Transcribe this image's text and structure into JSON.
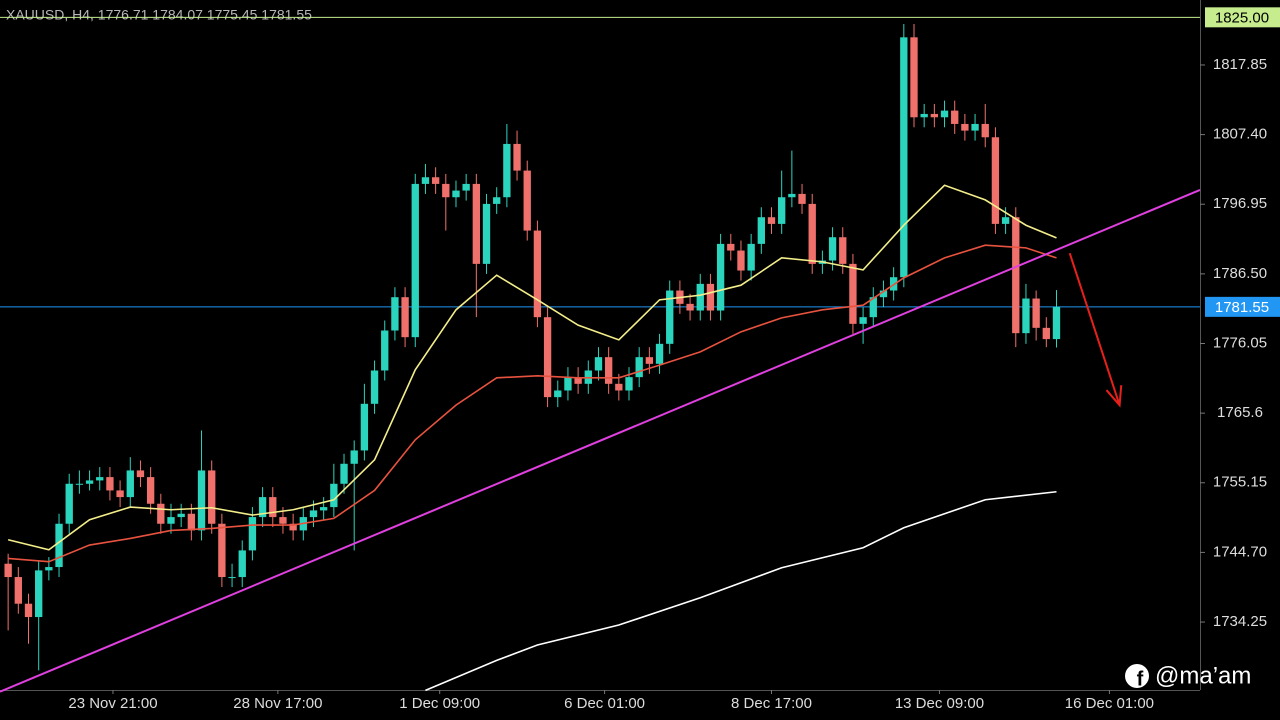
{
  "chart_data": {
    "type": "candlestick",
    "title": "XAUUSD, H4, 1776.71 1784.07 1775.45 1781.55",
    "up_color": "#2bd4bd",
    "down_color": "#f0716b",
    "open": [
      1743,
      1741,
      1737,
      1735,
      1742,
      1742.5,
      1749,
      1755,
      1755,
      1755.5,
      1756,
      1754,
      1753,
      1757,
      1756,
      1752,
      1749,
      1750,
      1750.5,
      1748,
      1757,
      1749,
      1741,
      1741,
      1745,
      1750,
      1753,
      1750,
      1749,
      1748,
      1750,
      1751,
      1751.5,
      1755,
      1758,
      1760,
      1767,
      1772,
      1778,
      1783,
      1777,
      1800,
      1801,
      1800,
      1798,
      1799,
      1800,
      1788,
      1797,
      1798,
      1806,
      1802,
      1793,
      1780,
      1768,
      1769,
      1771,
      1770,
      1772,
      1774,
      1770,
      1769,
      1771,
      1774,
      1773,
      1776,
      1784,
      1782,
      1781,
      1785,
      1781,
      1791,
      1790,
      1787,
      1791,
      1795,
      1794,
      1798,
      1798.5,
      1797,
      1788,
      1788.5,
      1792,
      1788,
      1779,
      1780,
      1783,
      1784,
      1786,
      1822,
      1810,
      1810.5,
      1810,
      1811,
      1809,
      1808,
      1809,
      1807,
      1794,
      1795,
      1777.6,
      1782.8,
      1778.4,
      1776.71
    ],
    "high": [
      1744.5,
      1742.5,
      1738.5,
      1743.5,
      1744,
      1750.5,
      1756.5,
      1757,
      1757,
      1757.5,
      1757.5,
      1755.5,
      1759,
      1758.5,
      1757.5,
      1753.5,
      1752,
      1752,
      1752,
      1763,
      1758.5,
      1750.5,
      1743,
      1746.5,
      1751.5,
      1754.5,
      1754.5,
      1751.5,
      1750.5,
      1751.5,
      1752.5,
      1753,
      1758,
      1759.5,
      1761.5,
      1770,
      1773.5,
      1779.5,
      1784.5,
      1784.5,
      1801.5,
      1803,
      1802.5,
      1801.5,
      1800.5,
      1801.5,
      1801.5,
      1798.5,
      1799.5,
      1809,
      1808,
      1803.5,
      1794.5,
      1781.5,
      1770.5,
      1772.5,
      1772.5,
      1773.5,
      1775.5,
      1775.5,
      1771.5,
      1772.5,
      1775.5,
      1775.5,
      1777.5,
      1785.5,
      1785.5,
      1783.5,
      1786.5,
      1786.5,
      1792.5,
      1792.5,
      1791.5,
      1792.5,
      1796.5,
      1796.5,
      1802,
      1805,
      1800,
      1798.5,
      1790,
      1793.5,
      1793.5,
      1789.5,
      1781.5,
      1784.5,
      1785.5,
      1787.5,
      1824,
      1824,
      1812,
      1812,
      1812.5,
      1812.5,
      1810.5,
      1810.5,
      1812,
      1808.5,
      1796.5,
      1796.5,
      1785,
      1784,
      1780,
      1784.07
    ],
    "low": [
      1733,
      1735.5,
      1731,
      1727,
      1740.5,
      1741,
      1747.5,
      1753.5,
      1754,
      1754,
      1752.5,
      1751.5,
      1751.5,
      1754.5,
      1750.5,
      1747.5,
      1747.5,
      1748.5,
      1746.5,
      1746.5,
      1747.5,
      1739.5,
      1739.5,
      1739.5,
      1743.5,
      1748.5,
      1748.5,
      1747.5,
      1746.5,
      1746.5,
      1748.5,
      1749.5,
      1750,
      1753.5,
      1745,
      1758.5,
      1765.5,
      1770.5,
      1776.5,
      1775.5,
      1775.5,
      1798.5,
      1798.5,
      1793,
      1796.5,
      1797.5,
      1780,
      1786.5,
      1795.5,
      1796.5,
      1800.5,
      1791.5,
      1778.5,
      1766.5,
      1766.5,
      1767.5,
      1768.5,
      1768.5,
      1770.5,
      1768.5,
      1767.5,
      1767.5,
      1769.5,
      1771.5,
      1771.5,
      1774.5,
      1780.5,
      1779.5,
      1779.5,
      1779.5,
      1779.5,
      1788.5,
      1785.5,
      1785.5,
      1789.5,
      1792.5,
      1792.5,
      1796.5,
      1795.5,
      1786.5,
      1786.5,
      1787,
      1786.5,
      1777.5,
      1776,
      1778.5,
      1781.5,
      1782.5,
      1784.5,
      1808.5,
      1808.5,
      1808.5,
      1808.5,
      1807.5,
      1806.5,
      1806.5,
      1805.5,
      1792.5,
      1792.5,
      1775.5,
      1776,
      1776.5,
      1775.5,
      1775.45
    ],
    "close": [
      1741,
      1737,
      1735,
      1742,
      1742.5,
      1749,
      1755,
      1755,
      1755.5,
      1756,
      1754,
      1753,
      1757,
      1756,
      1752,
      1749,
      1750,
      1750.5,
      1748,
      1757,
      1749,
      1741,
      1741,
      1745,
      1750,
      1753,
      1750,
      1749,
      1748,
      1750,
      1751,
      1751.5,
      1755,
      1758,
      1760,
      1767,
      1772,
      1778,
      1783,
      1777,
      1800,
      1801,
      1800,
      1798,
      1799,
      1800,
      1788,
      1797,
      1798,
      1806,
      1802,
      1793,
      1780,
      1768,
      1769,
      1771,
      1770,
      1772,
      1774,
      1770,
      1769,
      1771,
      1774,
      1773,
      1776,
      1784,
      1782,
      1781,
      1785,
      1781,
      1791,
      1790,
      1787,
      1791,
      1795,
      1794,
      1798,
      1798.5,
      1797,
      1788,
      1788.5,
      1792,
      1788,
      1779,
      1780,
      1783,
      1784,
      1786,
      1822,
      1810,
      1810.5,
      1810,
      1811,
      1809,
      1808,
      1809,
      1807,
      1794,
      1795,
      1777.6,
      1782.8,
      1778.4,
      1776.71,
      1781.55
    ],
    "xlim": [
      -0.8,
      117.1
    ],
    "xticks": [
      {
        "value": 10.3,
        "label": "23 Nov 21:00"
      },
      {
        "value": 26.5,
        "label": "28 Nov 17:00"
      },
      {
        "value": 42.4,
        "label": "1 Dec 09:00"
      },
      {
        "value": 58.6,
        "label": "6 Dec 01:00"
      },
      {
        "value": 75,
        "label": "8 Dec 17:00"
      },
      {
        "value": 91.5,
        "label": "13 Dec 09:00"
      },
      {
        "value": 108.2,
        "label": "16 Dec 01:00"
      }
    ],
    "ylim": [
      1724.05,
      1827.6
    ],
    "yticks": [
      1817.85,
      {
        "value": 1807.4,
        "label": "1807.40"
      },
      1796.95,
      {
        "value": 1786.5,
        "label": "1786.50"
      },
      1776.05,
      1765.6,
      1755.15,
      {
        "value": 1744.7,
        "label": "1744.70"
      },
      1734.25
    ],
    "moving_averages": [
      {
        "color": "#f3ee8a",
        "x": [
          0,
          4,
          8,
          12,
          16,
          20,
          24,
          28,
          32,
          36,
          40,
          44,
          48,
          52,
          56,
          60,
          64,
          68,
          72,
          76,
          80,
          84,
          88,
          92,
          96,
          100,
          103
        ],
        "values": [
          1746.6,
          1745.1,
          1749.6,
          1751.5,
          1751.1,
          1751.4,
          1750.3,
          1751.1,
          1752.6,
          1758.6,
          1772.1,
          1781.1,
          1786.3,
          1782.6,
          1778.8,
          1776.6,
          1782.6,
          1783.3,
          1784.8,
          1788.9,
          1788.3,
          1787.1,
          1793.8,
          1799.8,
          1797.6,
          1793.8,
          1791.9
        ]
      },
      {
        "color": "#e8533f",
        "x": [
          0,
          4,
          8,
          12,
          16,
          20,
          24,
          28,
          32,
          36,
          40,
          44,
          48,
          52,
          56,
          60,
          64,
          68,
          72,
          76,
          80,
          84,
          88,
          92,
          96,
          100,
          103
        ],
        "values": [
          1743.8,
          1743.3,
          1745.8,
          1746.8,
          1748.0,
          1748.3,
          1748.8,
          1748.8,
          1749.8,
          1754.0,
          1761.6,
          1766.8,
          1770.9,
          1771.2,
          1770.9,
          1770.9,
          1772.8,
          1774.8,
          1777.8,
          1779.9,
          1781.1,
          1781.8,
          1785.9,
          1788.9,
          1790.8,
          1790.4,
          1788.9
        ]
      },
      {
        "color": "#ffffff",
        "x": [
          41,
          48,
          52,
          60,
          68,
          76,
          84,
          88,
          96,
          103
        ],
        "values": [
          1724.0,
          1728.5,
          1730.8,
          1733.8,
          1737.9,
          1742.4,
          1745.4,
          1748.4,
          1752.6,
          1753.8
        ]
      }
    ],
    "trendline": {
      "color": "#e040e0",
      "x": [
        -0.8,
        117.1
      ],
      "values": [
        1723.8,
        1799.1
      ]
    },
    "arrow": {
      "color": "#e8201c",
      "x": [
        104.3,
        109.2
      ],
      "values": [
        1789.6,
        1766.8
      ]
    },
    "hlines": [
      {
        "value": 1825,
        "label": "1825.00",
        "color": "#c6ec8e",
        "text_color": "#000000"
      },
      {
        "value": 1781.55,
        "label": "1781.55",
        "color": "#2196f3",
        "text_color": "#ffffff"
      }
    ],
    "watermark": "@ma’am"
  }
}
